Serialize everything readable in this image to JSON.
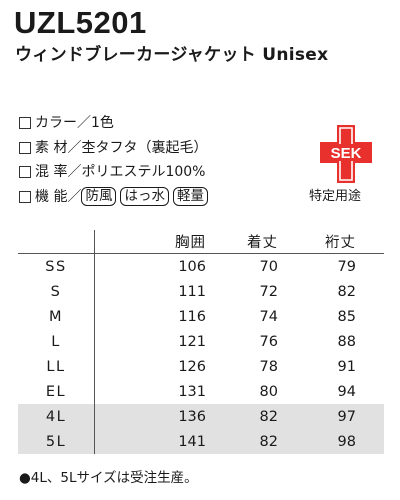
{
  "product": {
    "code": "UZL5201",
    "name": "ウィンドブレーカージャケット Unisex"
  },
  "specs": [
    {
      "label": "カラー／1色"
    },
    {
      "label": "素 材／杢タフタ（裏起毛）"
    },
    {
      "label": "混 率／ポリエステル100%"
    },
    {
      "label": "機 能／",
      "tags": [
        "防風",
        "はっ水",
        "軽量"
      ]
    }
  ],
  "certification": {
    "mark": "SEK",
    "caption": "特定用途",
    "color": "#e8302d"
  },
  "size_table": {
    "headers": [
      "胸囲",
      "着丈",
      "裄丈"
    ],
    "rows": [
      {
        "size": "SS",
        "chest": "106",
        "length": "70",
        "sleeve": "79"
      },
      {
        "size": "S",
        "chest": "111",
        "length": "72",
        "sleeve": "82"
      },
      {
        "size": "M",
        "chest": "116",
        "length": "74",
        "sleeve": "85"
      },
      {
        "size": "L",
        "chest": "121",
        "length": "76",
        "sleeve": "88"
      },
      {
        "size": "LL",
        "chest": "126",
        "length": "78",
        "sleeve": "91"
      },
      {
        "size": "EL",
        "chest": "131",
        "length": "80",
        "sleeve": "94"
      },
      {
        "size": "4L",
        "chest": "136",
        "length": "82",
        "sleeve": "97"
      },
      {
        "size": "5L",
        "chest": "141",
        "length": "82",
        "sleeve": "98"
      }
    ],
    "shaded_sizes": [
      "4L",
      "5L"
    ]
  },
  "note": "●4L、5Lサイズは受注生産。"
}
